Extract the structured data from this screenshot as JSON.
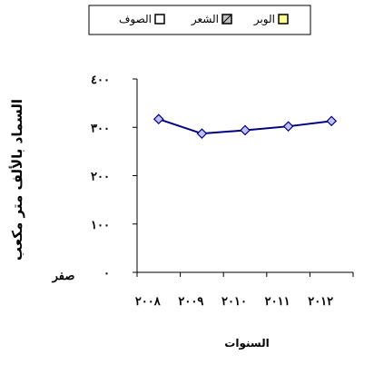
{
  "chart_data": {
    "type": "line",
    "categories": [
      "٢٠٠٨",
      "٢٠٠٩",
      "٢٠١٠",
      "٢٠١١",
      "٢٠١٢"
    ],
    "series": [
      {
        "name": "الوبر",
        "values": [
          0,
          0,
          0,
          0,
          0
        ],
        "color": "#ffff99",
        "visible": false
      },
      {
        "name": "الشعر",
        "values": [
          0,
          0,
          0,
          0,
          0
        ],
        "color": "#000080",
        "visible": false
      },
      {
        "name": "الصوف",
        "values": [
          317,
          287,
          294,
          302,
          313
        ],
        "color": "#000080",
        "marker_fill": "#c0c0ff",
        "visible": true
      }
    ],
    "yticks": [
      {
        "value": 0,
        "label": "٠"
      },
      {
        "value": 100,
        "label": "١٠٠"
      },
      {
        "value": 200,
        "label": "٢٠٠"
      },
      {
        "value": 300,
        "label": "٣٠٠"
      },
      {
        "value": 400,
        "label": "٤٠٠"
      }
    ],
    "zero_label": "صفر",
    "ylim": [
      0,
      400
    ],
    "ylabel": "السماد بالألف متر مكعب",
    "xlabel": "السنوات",
    "grid": false,
    "legend": {
      "placement": "top",
      "items": [
        {
          "label": "الوبر",
          "swatch": "#ffff99"
        },
        {
          "label": "الشعر",
          "swatch": "#c0c0c0"
        },
        {
          "label": "الصوف",
          "swatch": "#ffffff"
        }
      ]
    }
  }
}
